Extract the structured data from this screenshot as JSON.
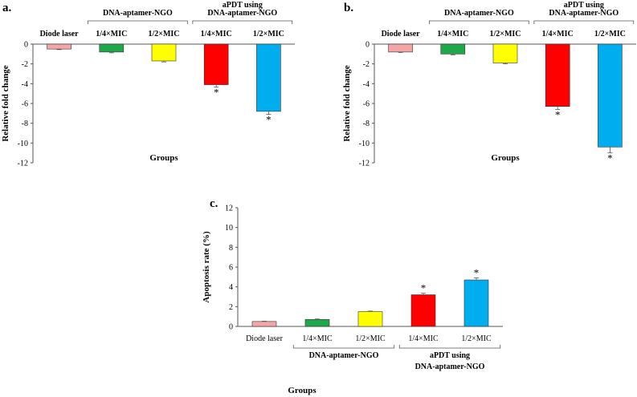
{
  "chart_data": [
    {
      "type": "bar",
      "panel": "a.",
      "categories": [
        "Diode laser",
        "1/4×MIC",
        "1/2×MIC",
        "1/4×MIC",
        "1/2×MIC"
      ],
      "values": [
        -0.5,
        -0.8,
        -1.7,
        -4.1,
        -6.8
      ],
      "errors": [
        0.05,
        0.08,
        0.1,
        0.25,
        0.3
      ],
      "significant": [
        false,
        false,
        false,
        true,
        true
      ],
      "colors": [
        "#f4a6a6",
        "#1fa84a",
        "#ffff00",
        "#ff0000",
        "#00aeef"
      ],
      "ylabel": "Relative fold change",
      "xlabel": "Groups",
      "ylim": [
        -12,
        0
      ],
      "yticks": [
        0,
        -2,
        -4,
        -6,
        -8,
        -10,
        -12
      ],
      "group_titles": [
        "DNA-aptamer-NGO",
        "aPDT using DNA-aptamer-NGO"
      ],
      "group_titles_lines": [
        [
          "DNA-aptamer-NGO"
        ],
        [
          "aPDT using",
          "DNA-aptamer-NGO"
        ]
      ],
      "significance_marker": "*"
    },
    {
      "type": "bar",
      "panel": "b.",
      "categories": [
        "Diode laser",
        "1/4×MIC",
        "1/2×MIC",
        "1/4×MIC",
        "1/2×MIC"
      ],
      "values": [
        -0.8,
        -1.0,
        -1.9,
        -6.3,
        -10.4
      ],
      "errors": [
        0.05,
        0.08,
        0.1,
        0.3,
        0.6
      ],
      "significant": [
        false,
        false,
        false,
        true,
        true
      ],
      "colors": [
        "#f4a6a6",
        "#1fa84a",
        "#ffff00",
        "#ff0000",
        "#00aeef"
      ],
      "ylabel": "Relative fold change",
      "xlabel": "Groups",
      "ylim": [
        -12,
        0
      ],
      "yticks": [
        0,
        -2,
        -4,
        -6,
        -8,
        -10,
        -12
      ],
      "group_titles": [
        "DNA-aptamer-NGO",
        "aPDT using DNA-aptamer-NGO"
      ],
      "group_titles_lines": [
        [
          "DNA-aptamer-NGO"
        ],
        [
          "aPDT using",
          "DNA-aptamer-NGO"
        ]
      ],
      "significance_marker": "*"
    },
    {
      "type": "bar",
      "panel": "c.",
      "categories": [
        "Diode laser",
        "1/4×MIC",
        "1/2×MIC",
        "1/4×MIC",
        "1/2×MIC"
      ],
      "values": [
        0.5,
        0.7,
        1.5,
        3.2,
        4.7
      ],
      "errors": [
        0.03,
        0.05,
        0.05,
        0.15,
        0.2
      ],
      "significant": [
        false,
        false,
        false,
        true,
        true
      ],
      "colors": [
        "#f4a6a6",
        "#1fa84a",
        "#ffff00",
        "#ff0000",
        "#00aeef"
      ],
      "ylabel": "Apoptosis rate (%)",
      "xlabel": "Groups",
      "ylim": [
        0,
        12
      ],
      "yticks": [
        0,
        2,
        4,
        6,
        8,
        10,
        12
      ],
      "group_titles": [
        "DNA-aptamer-NGO",
        "aPDT using DNA-aptamer-NGO"
      ],
      "group_titles_lines": [
        [
          "DNA-aptamer-NGO"
        ],
        [
          "aPDT using",
          "DNA-aptamer-NGO"
        ]
      ],
      "significance_marker": "*"
    }
  ]
}
